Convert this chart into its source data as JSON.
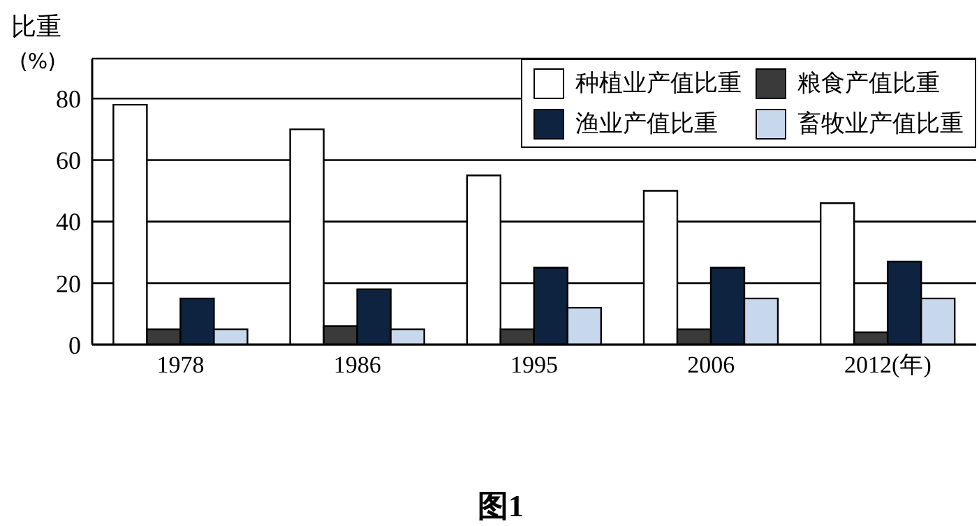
{
  "chart_data": {
    "type": "bar",
    "title": "图1",
    "ylabel": "比重\n(%)",
    "categories": [
      "1978",
      "1986",
      "1995",
      "2006",
      "2012(年)"
    ],
    "series": [
      {
        "name": "种植业产值比重",
        "color": "#ffffff",
        "values": [
          78,
          70,
          55,
          50,
          46
        ]
      },
      {
        "name": "粮食产值比重",
        "color": "#3a3a3a",
        "values": [
          5,
          6,
          5,
          5,
          4
        ]
      },
      {
        "name": "渔业产值比重",
        "color": "#0d2340",
        "values": [
          15,
          18,
          25,
          25,
          27
        ]
      },
      {
        "name": "畜牧业产值比重",
        "color": "#c8d8ec",
        "values": [
          5,
          5,
          12,
          15,
          15
        ]
      }
    ],
    "ylim": [
      0,
      93
    ],
    "yticks": [
      0,
      20,
      40,
      60,
      80
    ],
    "grid": "y",
    "legend": "top right"
  }
}
